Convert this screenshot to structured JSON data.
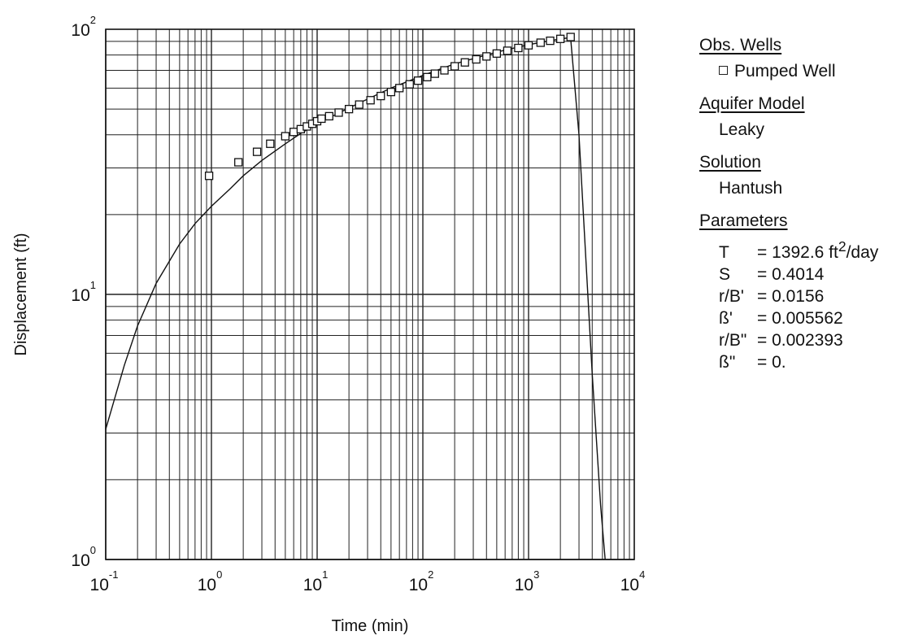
{
  "chart_data": {
    "type": "scatter",
    "title": "",
    "xlabel": "Time (min)",
    "ylabel": "Displacement (ft)",
    "x_scale": "log",
    "y_scale": "log",
    "xlim": [
      0.1,
      10000
    ],
    "ylim": [
      1,
      100
    ],
    "grid": true,
    "legend_position": "right",
    "x_ticks": [
      {
        "base": "10",
        "exp": "-1"
      },
      {
        "base": "10",
        "exp": "0"
      },
      {
        "base": "10",
        "exp": "1"
      },
      {
        "base": "10",
        "exp": "2"
      },
      {
        "base": "10",
        "exp": "3"
      },
      {
        "base": "10",
        "exp": "4"
      }
    ],
    "y_ticks": [
      {
        "base": "10",
        "exp": "0"
      },
      {
        "base": "10",
        "exp": "1"
      },
      {
        "base": "10",
        "exp": "2"
      }
    ],
    "series": [
      {
        "name": "Pumped Well",
        "kind": "points",
        "marker": "open-square",
        "points": [
          [
            0.95,
            28.0
          ],
          [
            1.8,
            31.5
          ],
          [
            2.7,
            34.5
          ],
          [
            3.6,
            37.0
          ],
          [
            5.0,
            39.5
          ],
          [
            6.0,
            41.0
          ],
          [
            7.0,
            42.0
          ],
          [
            8.0,
            43.0
          ],
          [
            9.0,
            44.0
          ],
          [
            10.0,
            45.0
          ],
          [
            11.0,
            46.0
          ],
          [
            13.0,
            47.0
          ],
          [
            16.0,
            48.5
          ],
          [
            20.0,
            50.0
          ],
          [
            25.0,
            52.0
          ],
          [
            32.0,
            54.0
          ],
          [
            40.0,
            56.0
          ],
          [
            50.0,
            58.0
          ],
          [
            60.0,
            60.0
          ],
          [
            75.0,
            62.0
          ],
          [
            90.0,
            64.0
          ],
          [
            110.0,
            66.0
          ],
          [
            130.0,
            68.0
          ],
          [
            160.0,
            70.0
          ],
          [
            200.0,
            72.5
          ],
          [
            250.0,
            75.0
          ],
          [
            320.0,
            77.0
          ],
          [
            400.0,
            79.0
          ],
          [
            500.0,
            81.0
          ],
          [
            630.0,
            83.0
          ],
          [
            800.0,
            85.0
          ],
          [
            1000.0,
            87.0
          ],
          [
            1300.0,
            89.0
          ],
          [
            1600.0,
            90.5
          ],
          [
            2000.0,
            92.0
          ],
          [
            2500.0,
            93.5
          ]
        ]
      },
      {
        "name": "Hantush",
        "kind": "line",
        "points": [
          [
            0.1,
            3.1
          ],
          [
            0.15,
            5.4
          ],
          [
            0.2,
            7.6
          ],
          [
            0.3,
            11.0
          ],
          [
            0.5,
            15.5
          ],
          [
            0.7,
            18.5
          ],
          [
            1.0,
            21.5
          ],
          [
            1.5,
            25.0
          ],
          [
            2.0,
            28.0
          ],
          [
            3.0,
            32.0
          ],
          [
            5.0,
            37.0
          ],
          [
            7.0,
            40.5
          ],
          [
            10.0,
            44.0
          ],
          [
            20.0,
            50.5
          ],
          [
            30.0,
            54.5
          ],
          [
            50.0,
            60.0
          ],
          [
            100.0,
            67.0
          ],
          [
            200.0,
            74.0
          ],
          [
            500.0,
            82.0
          ],
          [
            1000.0,
            87.5
          ],
          [
            2000.0,
            92.0
          ],
          [
            2500.0,
            93.0
          ],
          [
            3000.0,
            40.0
          ],
          [
            4000.0,
            5.0
          ],
          [
            4800.0,
            1.6
          ],
          [
            5300.0,
            1.0
          ]
        ]
      }
    ]
  },
  "legend": {
    "obs_wells_heading": "Obs. Wells",
    "obs_well_item": "Pumped Well",
    "aquifer_heading": "Aquifer Model",
    "aquifer_value": "Leaky",
    "solution_heading": "Solution",
    "solution_value": "Hantush",
    "parameters_heading": "Parameters",
    "parameters": [
      {
        "name": "T",
        "value": "= 1392.6 ft",
        "sup": "2",
        "suffix": "/day"
      },
      {
        "name": "S",
        "value": "= 0.4014"
      },
      {
        "name": "r/B'",
        "value": "= 0.0156"
      },
      {
        "name": "ß'",
        "value": "= 0.005562"
      },
      {
        "name": "r/B\"",
        "value": "= 0.002393"
      },
      {
        "name": "ß\"",
        "value": "= 0."
      }
    ]
  }
}
